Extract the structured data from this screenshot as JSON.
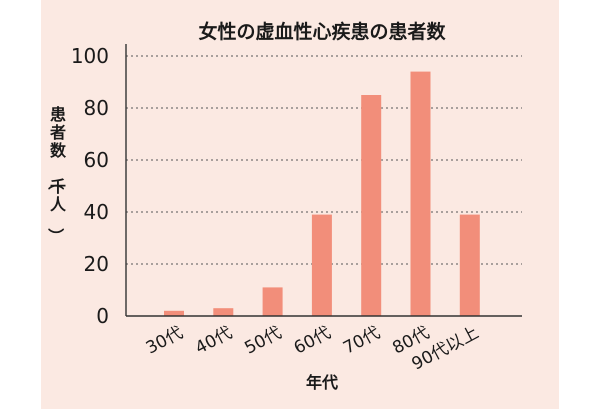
{
  "chart_data": {
    "type": "bar",
    "title": "女性の虚血性心疾患の患者数",
    "xlabel": "年代",
    "ylabel": "患者数（千人）",
    "categories": [
      "30代",
      "40代",
      "50代",
      "60代",
      "70代",
      "80代",
      "90代以上"
    ],
    "values": [
      2,
      3,
      11,
      39,
      85,
      94,
      39
    ],
    "ylim": [
      0,
      100
    ],
    "yticks": [
      "0",
      "20",
      "40",
      "60",
      "80",
      "100"
    ],
    "grid": true,
    "bar_color": "#f28e7a"
  }
}
